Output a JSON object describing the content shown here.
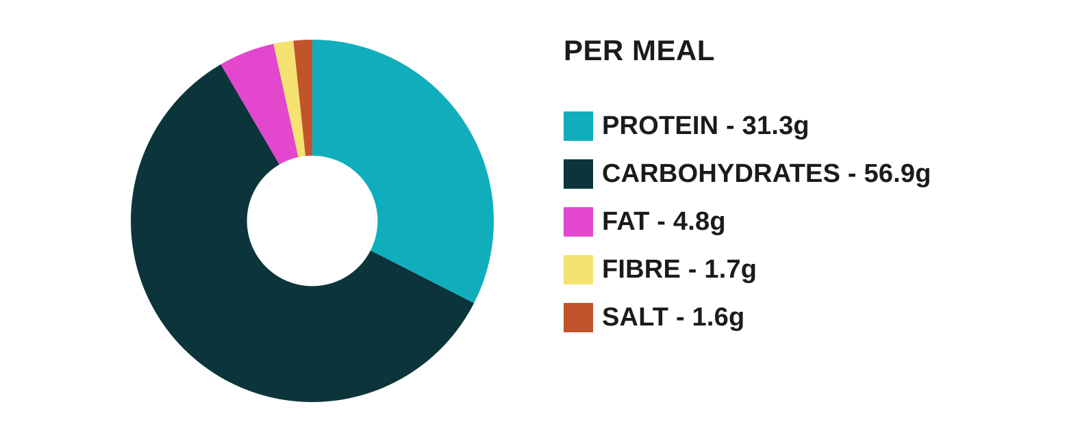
{
  "page": {
    "background": "#ffffff",
    "text_color": "#1b1b1b"
  },
  "chart_data": {
    "type": "pie",
    "subtype": "donut",
    "title": "PER MEAL",
    "unit": "g",
    "start_angle_deg": -90,
    "direction": "clockwise",
    "inner_radius_ratio": 0.36,
    "legend_position": "right",
    "grid": false,
    "categories": [
      "PROTEIN",
      "CARBOHYDRATES",
      "FAT",
      "FIBRE",
      "SALT"
    ],
    "values": [
      31.3,
      56.9,
      4.8,
      1.7,
      1.6
    ],
    "slices": [
      {
        "label": "PROTEIN",
        "value": 31.3,
        "display": "PROTEIN - 31.3g",
        "color": "#10aebc"
      },
      {
        "label": "CARBOHYDRATES",
        "value": 56.9,
        "display": "CARBOHYDRATES - 56.9g",
        "color": "#0b353b"
      },
      {
        "label": "FAT",
        "value": 4.8,
        "display": "FAT - 4.8g",
        "color": "#e247cd"
      },
      {
        "label": "FIBRE",
        "value": 1.7,
        "display": "FIBRE - 1.7g",
        "color": "#f5e271"
      },
      {
        "label": "SALT",
        "value": 1.6,
        "display": "SALT - 1.6g",
        "color": "#c2542b"
      }
    ]
  }
}
